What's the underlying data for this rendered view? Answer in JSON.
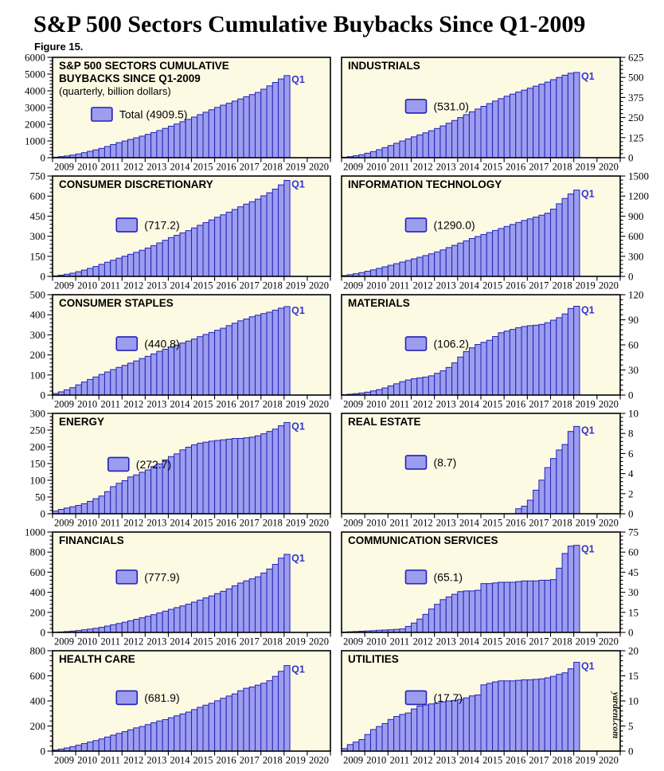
{
  "page": {
    "title": "S&P 500 Sectors Cumulative Buybacks Since Q1-2009",
    "figure_label": "Figure 15.",
    "watermark": "yardeni.com"
  },
  "colors": {
    "plot_bg": "#FDFAE4",
    "bar_fill": "#9C9DEE",
    "bar_stroke": "#2222B8",
    "axis": "#000000",
    "annotation": "#3333CC"
  },
  "chart_data": [
    {
      "type": "bar",
      "title_lines": [
        "S&P 500 SECTORS CUMULATIVE",
        "BUYBACKS SINCE Q1-2009"
      ],
      "subtitle": "(quarterly, billion dollars)",
      "legend": "Total (4909.5)",
      "axis_side": "left",
      "ylim": [
        0,
        6000
      ],
      "yticks": [
        0,
        1000,
        2000,
        3000,
        4000,
        5000,
        6000
      ],
      "years": [
        "2009",
        "2010",
        "2011",
        "2012",
        "2013",
        "2014",
        "2015",
        "2016",
        "2017",
        "2018",
        "2019",
        "2020"
      ],
      "annotation": "Q1",
      "legend_frac": [
        0.14,
        0.5
      ],
      "values": [
        30,
        65,
        105,
        155,
        225,
        300,
        385,
        470,
        560,
        670,
        790,
        900,
        1000,
        1095,
        1190,
        1290,
        1395,
        1505,
        1625,
        1755,
        1885,
        2015,
        2150,
        2290,
        2430,
        2575,
        2720,
        2870,
        3010,
        3140,
        3255,
        3385,
        3515,
        3645,
        3775,
        3905,
        4095,
        4295,
        4500,
        4710,
        4909.5
      ]
    },
    {
      "type": "bar",
      "title_lines": [
        "INDUSTRIALS"
      ],
      "subtitle": "",
      "legend": "(531.0)",
      "axis_side": "right",
      "ylim": [
        0,
        625
      ],
      "yticks": [
        0,
        125,
        250,
        375,
        500,
        625
      ],
      "years": [
        "2009",
        "2010",
        "2011",
        "2012",
        "2013",
        "2014",
        "2015",
        "2016",
        "2017",
        "2018",
        "2019",
        "2020"
      ],
      "annotation": "Q1",
      "legend_frac": [
        0.23,
        0.42
      ],
      "values": [
        3,
        7,
        12,
        19,
        28,
        38,
        50,
        63,
        76,
        90,
        104,
        117,
        130,
        142,
        155,
        168,
        182,
        198,
        215,
        232,
        250,
        268,
        286,
        303,
        320,
        337,
        353,
        368,
        383,
        396,
        409,
        421,
        433,
        446,
        458,
        471,
        486,
        500,
        514,
        526,
        531
      ]
    },
    {
      "type": "bar",
      "title_lines": [
        "CONSUMER DISCRETIONARY"
      ],
      "subtitle": "",
      "legend": "(717.2)",
      "axis_side": "left",
      "ylim": [
        0,
        750
      ],
      "yticks": [
        0,
        150,
        300,
        450,
        600,
        750
      ],
      "years": [
        "2009",
        "2010",
        "2011",
        "2012",
        "2013",
        "2014",
        "2015",
        "2016",
        "2017",
        "2018",
        "2019",
        "2020"
      ],
      "annotation": "Q1",
      "legend_frac": [
        0.23,
        0.42
      ],
      "values": [
        4,
        9,
        16,
        24,
        35,
        47,
        60,
        74,
        90,
        106,
        121,
        136,
        151,
        165,
        180,
        195,
        212,
        230,
        250,
        270,
        290,
        307,
        325,
        342,
        362,
        382,
        402,
        422,
        442,
        460,
        480,
        500,
        520,
        540,
        558,
        577,
        602,
        625,
        652,
        684,
        717.2
      ]
    },
    {
      "type": "bar",
      "title_lines": [
        "INFORMATION TECHNOLOGY"
      ],
      "subtitle": "",
      "legend": "(1290.0)",
      "axis_side": "right",
      "ylim": [
        0,
        1500
      ],
      "yticks": [
        0,
        300,
        600,
        900,
        1200,
        1500
      ],
      "years": [
        "2009",
        "2010",
        "2011",
        "2012",
        "2013",
        "2014",
        "2015",
        "2016",
        "2017",
        "2018",
        "2019",
        "2020"
      ],
      "annotation": "Q1",
      "legend_frac": [
        0.23,
        0.42
      ],
      "values": [
        12,
        25,
        40,
        57,
        77,
        98,
        120,
        143,
        166,
        190,
        214,
        238,
        262,
        286,
        311,
        337,
        366,
        396,
        430,
        464,
        498,
        532,
        566,
        596,
        626,
        656,
        686,
        716,
        746,
        776,
        806,
        836,
        860,
        886,
        914,
        944,
        1005,
        1085,
        1165,
        1232,
        1290
      ]
    },
    {
      "type": "bar",
      "title_lines": [
        "CONSUMER STAPLES"
      ],
      "subtitle": "",
      "legend": "(440.8)",
      "axis_side": "left",
      "ylim": [
        0,
        500
      ],
      "yticks": [
        0,
        100,
        200,
        300,
        400,
        500
      ],
      "years": [
        "2009",
        "2010",
        "2011",
        "2012",
        "2013",
        "2014",
        "2015",
        "2016",
        "2017",
        "2018",
        "2019",
        "2020"
      ],
      "annotation": "Q1",
      "legend_frac": [
        0.23,
        0.42
      ],
      "values": [
        8,
        16,
        26,
        37,
        51,
        65,
        78,
        90,
        103,
        115,
        127,
        138,
        148,
        159,
        170,
        182,
        193,
        205,
        218,
        228,
        239,
        249,
        259,
        269,
        279,
        291,
        302,
        312,
        323,
        333,
        346,
        358,
        370,
        379,
        390,
        398,
        406,
        413,
        423,
        433,
        440.8
      ]
    },
    {
      "type": "bar",
      "title_lines": [
        "MATERIALS"
      ],
      "subtitle": "",
      "legend": "(106.2)",
      "axis_side": "right",
      "ylim": [
        0,
        120
      ],
      "yticks": [
        0,
        30,
        60,
        90,
        120
      ],
      "years": [
        "2009",
        "2010",
        "2011",
        "2012",
        "2013",
        "2014",
        "2015",
        "2016",
        "2017",
        "2018",
        "2019",
        "2020"
      ],
      "annotation": "Q1",
      "legend_frac": [
        0.23,
        0.42
      ],
      "values": [
        0.5,
        1,
        1.7,
        2.5,
        3.5,
        5,
        6.5,
        8.5,
        11,
        13.5,
        16,
        18,
        19.5,
        20.5,
        21.5,
        23,
        26,
        29,
        33,
        38.5,
        45.5,
        52,
        56.5,
        60.5,
        63,
        65.5,
        70,
        74.5,
        76.5,
        78.5,
        80.5,
        82,
        83,
        83.5,
        84.5,
        86.5,
        89.5,
        92.5,
        97,
        103.5,
        106.2
      ]
    },
    {
      "type": "bar",
      "title_lines": [
        "ENERGY"
      ],
      "subtitle": "",
      "legend": "(272.7)",
      "axis_side": "left",
      "ylim": [
        0,
        300
      ],
      "yticks": [
        0,
        50,
        100,
        150,
        200,
        250,
        300
      ],
      "years": [
        "2009",
        "2010",
        "2011",
        "2012",
        "2013",
        "2014",
        "2015",
        "2016",
        "2017",
        "2018",
        "2019",
        "2020"
      ],
      "annotation": "Q1",
      "legend_frac": [
        0.2,
        0.44
      ],
      "values": [
        8,
        13,
        17,
        21,
        25,
        30,
        37,
        45,
        53,
        66,
        81,
        91,
        99,
        110,
        116,
        124,
        131,
        141,
        149,
        161,
        171,
        179,
        191,
        199,
        206,
        211,
        214,
        217,
        219,
        221,
        223,
        225,
        225,
        227,
        229,
        233,
        239,
        246,
        253,
        263,
        272.7
      ]
    },
    {
      "type": "bar",
      "title_lines": [
        "REAL ESTATE"
      ],
      "subtitle": "",
      "legend": "(8.7)",
      "axis_side": "right",
      "ylim": [
        0,
        10
      ],
      "yticks": [
        0,
        2,
        4,
        6,
        8,
        10
      ],
      "years": [
        "2009",
        "2010",
        "2011",
        "2012",
        "2013",
        "2014",
        "2015",
        "2016",
        "2017",
        "2018",
        "2019",
        "2020"
      ],
      "annotation": "Q1",
      "legend_frac": [
        0.23,
        0.42
      ],
      "values": [
        0,
        0,
        0,
        0,
        0,
        0,
        0,
        0,
        0,
        0,
        0,
        0,
        0,
        0,
        0,
        0,
        0,
        0,
        0,
        0,
        0,
        0,
        0,
        0,
        0,
        0,
        0,
        0,
        0,
        0,
        0.5,
        0.75,
        1.35,
        2.35,
        3.35,
        4.6,
        5.5,
        6.35,
        6.9,
        8.2,
        8.7
      ]
    },
    {
      "type": "bar",
      "title_lines": [
        "FINANCIALS"
      ],
      "subtitle": "",
      "legend": "(777.9)",
      "axis_side": "left",
      "ylim": [
        0,
        1000
      ],
      "yticks": [
        0,
        200,
        400,
        600,
        800,
        1000
      ],
      "years": [
        "2009",
        "2010",
        "2011",
        "2012",
        "2013",
        "2014",
        "2015",
        "2016",
        "2017",
        "2018",
        "2019",
        "2020"
      ],
      "annotation": "Q1",
      "legend_frac": [
        0.23,
        0.38
      ],
      "values": [
        2,
        5,
        9,
        13,
        19,
        26,
        33,
        41,
        51,
        63,
        76,
        89,
        102,
        116,
        131,
        146,
        161,
        177,
        194,
        212,
        230,
        247,
        264,
        282,
        302,
        322,
        344,
        364,
        387,
        410,
        434,
        464,
        492,
        514,
        534,
        554,
        592,
        632,
        678,
        740,
        777.9
      ]
    },
    {
      "type": "bar",
      "title_lines": [
        "COMMUNICATION SERVICES"
      ],
      "subtitle": "",
      "legend": "(65.1)",
      "axis_side": "right",
      "ylim": [
        0,
        75
      ],
      "yticks": [
        0,
        15,
        30,
        45,
        60,
        75
      ],
      "years": [
        "2009",
        "2010",
        "2011",
        "2012",
        "2013",
        "2014",
        "2015",
        "2016",
        "2017",
        "2018",
        "2019",
        "2020"
      ],
      "annotation": "Q1",
      "legend_frac": [
        0.23,
        0.38
      ],
      "values": [
        0.3,
        0.5,
        0.7,
        0.9,
        1.1,
        1.3,
        1.6,
        1.8,
        2,
        2.3,
        2.6,
        4.5,
        7,
        10,
        13.5,
        17.5,
        21,
        24.5,
        26.5,
        28.5,
        30.5,
        31,
        31,
        31.5,
        36.5,
        36.5,
        37,
        37.5,
        37.5,
        37.5,
        38,
        38.5,
        38.5,
        38.5,
        39,
        39,
        39.5,
        48,
        59,
        64.5,
        65.1
      ]
    },
    {
      "type": "bar",
      "title_lines": [
        "HEALTH CARE"
      ],
      "subtitle": "",
      "legend": "(681.9)",
      "axis_side": "left",
      "ylim": [
        0,
        800
      ],
      "yticks": [
        0,
        200,
        400,
        600,
        800
      ],
      "years": [
        "2009",
        "2010",
        "2011",
        "2012",
        "2013",
        "2014",
        "2015",
        "2016",
        "2017",
        "2018",
        "2019",
        "2020"
      ],
      "annotation": "Q1",
      "legend_frac": [
        0.23,
        0.4
      ],
      "values": [
        8,
        16,
        25,
        35,
        47,
        60,
        72,
        84,
        97,
        112,
        127,
        141,
        155,
        170,
        185,
        196,
        211,
        226,
        240,
        251,
        266,
        281,
        296,
        311,
        331,
        349,
        366,
        381,
        401,
        421,
        439,
        456,
        481,
        501,
        511,
        526,
        541,
        561,
        596,
        636,
        681.9
      ]
    },
    {
      "type": "bar",
      "title_lines": [
        "UTILITIES"
      ],
      "subtitle": "",
      "legend": "(17.7)",
      "axis_side": "right",
      "ylim": [
        0,
        20
      ],
      "yticks": [
        0,
        5,
        10,
        15,
        20
      ],
      "years": [
        "2009",
        "2010",
        "2011",
        "2012",
        "2013",
        "2014",
        "2015",
        "2016",
        "2017",
        "2018",
        "2019",
        "2020"
      ],
      "annotation": "Q1",
      "legend_frac": [
        0.23,
        0.4
      ],
      "has_watermark": true,
      "values": [
        0.5,
        1.3,
        1.8,
        2.3,
        3.3,
        4.3,
        4.9,
        5.5,
        6.3,
        6.9,
        7.3,
        7.6,
        8.4,
        9,
        9.2,
        9.4,
        9.6,
        9.8,
        10,
        10.1,
        10.3,
        10.6,
        11,
        11.2,
        13.2,
        13.5,
        13.8,
        14,
        14,
        14,
        14.1,
        14.2,
        14.2,
        14.3,
        14.4,
        14.6,
        14.9,
        15.3,
        15.6,
        16.4,
        17.7
      ]
    }
  ]
}
